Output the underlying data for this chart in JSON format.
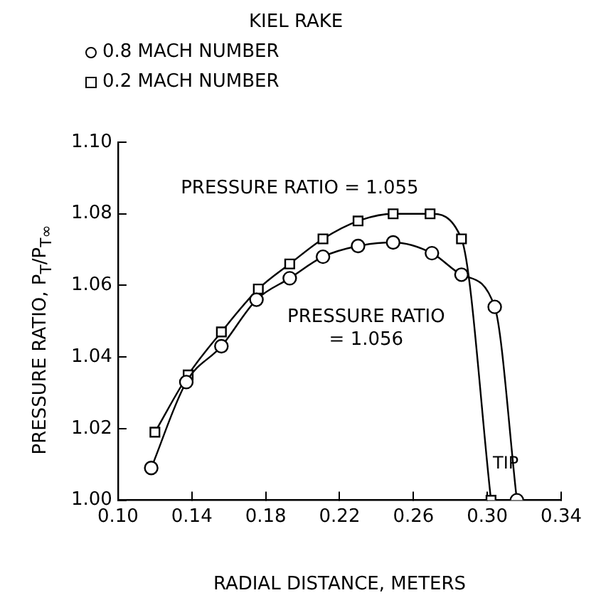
{
  "chart_data": {
    "type": "line",
    "xlabel": "RADIAL DISTANCE, METERS",
    "ylabel": "PRESSURE RATIO, P$_{T}$/P$_{T∞}$",
    "legend_title": "KIEL RAKE",
    "legend": "top",
    "grid": false,
    "xlim": [
      0.1,
      0.34
    ],
    "xticks": [
      {
        "value": 0.1,
        "label": "0.10"
      },
      {
        "value": 0.14,
        "label": "0.14"
      },
      {
        "value": 0.18,
        "label": "0.18"
      },
      {
        "value": 0.22,
        "label": "0.22"
      },
      {
        "value": 0.26,
        "label": "0.26"
      },
      {
        "value": 0.3,
        "label": "0.30"
      },
      {
        "value": 0.34,
        "label": "0.34"
      }
    ],
    "ylim": [
      1.0,
      1.1
    ],
    "yticks": [
      {
        "value": 1.0,
        "label": "1.00"
      },
      {
        "value": 1.02,
        "label": "1.02"
      },
      {
        "value": 1.04,
        "label": "1.04"
      },
      {
        "value": 1.06,
        "label": "1.06"
      },
      {
        "value": 1.08,
        "label": "1.08"
      },
      {
        "value": 1.1,
        "label": "1.10"
      }
    ],
    "series": [
      {
        "name": "0.8 MACH NUMBER",
        "color": "#000000",
        "marker": "circle",
        "x": [
          0.118,
          0.137,
          0.156,
          0.175,
          0.193,
          0.211,
          0.23,
          0.249,
          0.27,
          0.286,
          0.304,
          0.316
        ],
        "values": [
          1.009,
          1.033,
          1.043,
          1.056,
          1.062,
          1.068,
          1.071,
          1.072,
          1.069,
          1.063,
          1.054,
          1.0
        ]
      },
      {
        "name": "0.2 MACH NUMBER",
        "color": "#000000",
        "marker": "square",
        "x": [
          0.12,
          0.138,
          0.156,
          0.176,
          0.193,
          0.211,
          0.23,
          0.249,
          0.269,
          0.286,
          0.302
        ],
        "values": [
          1.019,
          1.035,
          1.047,
          1.059,
          1.066,
          1.073,
          1.078,
          1.08,
          1.08,
          1.073,
          1.0
        ]
      }
    ],
    "annotations": [
      "PRESSURE RATIO = 1.055",
      "PRESSURE RATIO\n= 1.056",
      {
        "text": "TIP",
        "x": 0.31,
        "y": 1.01
      }
    ]
  }
}
